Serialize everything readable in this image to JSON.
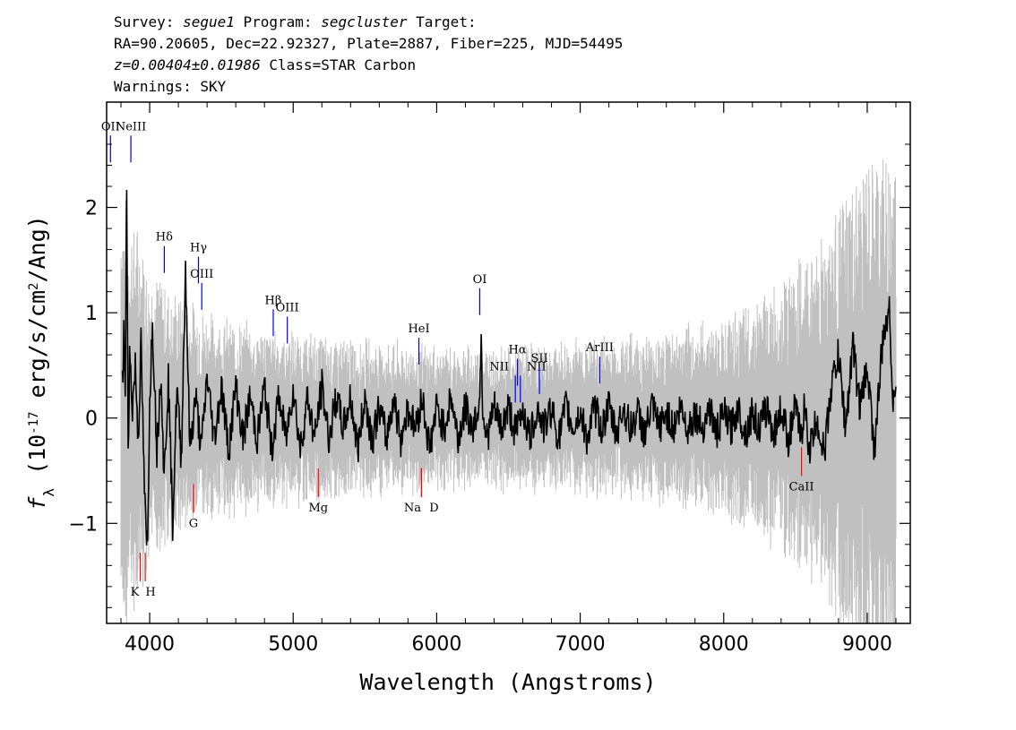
{
  "header": {
    "line1": [
      {
        "text": "Survey: ",
        "italic": false
      },
      {
        "text": "segue1",
        "italic": true
      },
      {
        "text": " Program: ",
        "italic": false
      },
      {
        "text": "segcluster",
        "italic": true
      },
      {
        "text": " Target:",
        "italic": false
      }
    ],
    "line2": "RA=90.20605, Dec=22.92327, Plate=2887, Fiber=225, MJD=54495",
    "line3": [
      {
        "text": "z=0.00404±0.01986",
        "italic": true
      },
      {
        "text": " Class=STAR Carbon",
        "italic": false
      }
    ],
    "line4": "Warnings: SKY"
  },
  "chart_data": {
    "type": "line",
    "title": "",
    "xlabel": "Wavelength (Angstroms)",
    "ylabel": "f_λ (10^-17 erg/s/cm^2/Ang)",
    "xlim": [
      3700,
      9300
    ],
    "ylim": [
      -1.95,
      3.0
    ],
    "xticks": [
      4000,
      5000,
      6000,
      7000,
      8000,
      9000
    ],
    "yticks": [
      -1,
      0,
      1,
      2
    ],
    "grid": false,
    "series": [
      {
        "role": "flux",
        "color": "#000000",
        "points": [
          [
            3810,
            0.3
          ],
          [
            3820,
            0.8
          ],
          [
            3830,
            0.2
          ],
          [
            3840,
            2.25
          ],
          [
            3850,
            -0.3
          ],
          [
            3860,
            0.6
          ],
          [
            3880,
            0.1
          ],
          [
            3900,
            0.5
          ],
          [
            3920,
            -0.2
          ],
          [
            3940,
            0.7
          ],
          [
            3960,
            -0.5
          ],
          [
            3975,
            -1.15
          ],
          [
            3985,
            -1.2
          ],
          [
            4000,
            0.2
          ],
          [
            4020,
            0.9
          ],
          [
            4050,
            -0.3
          ],
          [
            4080,
            0.5
          ],
          [
            4100,
            -0.6
          ],
          [
            4130,
            0.4
          ],
          [
            4160,
            -1.0
          ],
          [
            4190,
            0.3
          ],
          [
            4220,
            -0.4
          ],
          [
            4250,
            1.45
          ],
          [
            4280,
            -0.3
          ],
          [
            4320,
            0.2
          ],
          [
            4360,
            -0.3
          ],
          [
            4400,
            0.4
          ],
          [
            4450,
            -0.2
          ],
          [
            4500,
            0.3
          ],
          [
            4550,
            -0.3
          ],
          [
            4600,
            0.3
          ],
          [
            4650,
            -0.2
          ],
          [
            4700,
            0.2
          ],
          [
            4750,
            -0.2
          ],
          [
            4800,
            0.3
          ],
          [
            4850,
            -0.3
          ],
          [
            4900,
            0.2
          ],
          [
            4950,
            -0.2
          ],
          [
            5000,
            0.3
          ],
          [
            5050,
            -0.3
          ],
          [
            5100,
            0.2
          ],
          [
            5150,
            -0.2
          ],
          [
            5200,
            0.3
          ],
          [
            5250,
            -0.2
          ],
          [
            5300,
            0.2
          ],
          [
            5350,
            -0.1
          ],
          [
            5400,
            0.2
          ],
          [
            5450,
            -0.3
          ],
          [
            5500,
            0.2
          ],
          [
            5550,
            -0.2
          ],
          [
            5600,
            0.1
          ],
          [
            5650,
            -0.2
          ],
          [
            5700,
            0.2
          ],
          [
            5750,
            -0.2
          ],
          [
            5800,
            0.1
          ],
          [
            5850,
            -0.1
          ],
          [
            5900,
            0.2
          ],
          [
            5950,
            -0.3
          ],
          [
            6000,
            0.1
          ],
          [
            6050,
            -0.1
          ],
          [
            6100,
            0.2
          ],
          [
            6150,
            -0.2
          ],
          [
            6200,
            0.1
          ],
          [
            6250,
            -0.1
          ],
          [
            6300,
            0.15
          ],
          [
            6310,
            0.9
          ],
          [
            6320,
            0.1
          ],
          [
            6350,
            -0.2
          ],
          [
            6400,
            0.1
          ],
          [
            6450,
            -0.1
          ],
          [
            6500,
            0.1
          ],
          [
            6550,
            -0.15
          ],
          [
            6600,
            0.1
          ],
          [
            6650,
            -0.2
          ],
          [
            6700,
            0.1
          ],
          [
            6750,
            -0.1
          ],
          [
            6800,
            0.1
          ],
          [
            6850,
            -0.2
          ],
          [
            6900,
            0.1
          ],
          [
            6950,
            -0.1
          ],
          [
            7000,
            0.05
          ],
          [
            7050,
            -0.2
          ],
          [
            7100,
            0.1
          ],
          [
            7150,
            -0.1
          ],
          [
            7200,
            0.1
          ],
          [
            7250,
            -0.15
          ],
          [
            7300,
            0.1
          ],
          [
            7350,
            -0.1
          ],
          [
            7400,
            0.05
          ],
          [
            7450,
            -0.15
          ],
          [
            7500,
            0.1
          ],
          [
            7550,
            -0.1
          ],
          [
            7600,
            0.05
          ],
          [
            7650,
            -0.1
          ],
          [
            7700,
            0.1
          ],
          [
            7750,
            -0.1
          ],
          [
            7800,
            0.05
          ],
          [
            7850,
            -0.1
          ],
          [
            7900,
            0.1
          ],
          [
            7950,
            -0.15
          ],
          [
            8000,
            0.05
          ],
          [
            8050,
            -0.1
          ],
          [
            8100,
            0.1
          ],
          [
            8150,
            -0.15
          ],
          [
            8200,
            0.05
          ],
          [
            8250,
            -0.1
          ],
          [
            8300,
            0.1
          ],
          [
            8350,
            -0.15
          ],
          [
            8400,
            0.1
          ],
          [
            8450,
            -0.2
          ],
          [
            8500,
            0.1
          ],
          [
            8540,
            -0.2
          ],
          [
            8560,
            0.1
          ],
          [
            8600,
            -0.3
          ],
          [
            8650,
            0.0
          ],
          [
            8700,
            -0.35
          ],
          [
            8750,
            0.3
          ],
          [
            8800,
            0.6
          ],
          [
            8850,
            -0.1
          ],
          [
            8900,
            0.7
          ],
          [
            8950,
            0.1
          ],
          [
            9000,
            0.5
          ],
          [
            9050,
            -0.3
          ],
          [
            9100,
            0.6
          ],
          [
            9150,
            1.1
          ],
          [
            9180,
            0.2
          ],
          [
            9200,
            0.3
          ]
        ]
      },
      {
        "role": "error",
        "color": "#c0c0c0",
        "points": [
          [
            3800,
            1.6
          ],
          [
            3850,
            1.4
          ],
          [
            3900,
            1.3
          ],
          [
            3950,
            1.2
          ],
          [
            4000,
            1.0
          ],
          [
            4100,
            0.9
          ],
          [
            4200,
            0.8
          ],
          [
            4300,
            0.75
          ],
          [
            4400,
            0.7
          ],
          [
            4500,
            0.65
          ],
          [
            4700,
            0.6
          ],
          [
            5000,
            0.55
          ],
          [
            5500,
            0.5
          ],
          [
            6000,
            0.45
          ],
          [
            6500,
            0.45
          ],
          [
            7000,
            0.5
          ],
          [
            7500,
            0.55
          ],
          [
            7800,
            0.6
          ],
          [
            8000,
            0.65
          ],
          [
            8200,
            0.75
          ],
          [
            8400,
            0.9
          ],
          [
            8600,
            1.1
          ],
          [
            8800,
            1.4
          ],
          [
            9000,
            1.7
          ],
          [
            9200,
            1.8
          ]
        ]
      }
    ],
    "line_labels": [
      {
        "label": "OII",
        "wave": 3727,
        "color": "blue",
        "pos": "top",
        "y": 2.7
      },
      {
        "label": "NeIII",
        "wave": 3869,
        "color": "blue",
        "pos": "top",
        "y": 2.7
      },
      {
        "label": "Hδ",
        "wave": 4102,
        "color": "blue",
        "pos": "top",
        "y": 1.65
      },
      {
        "label": "Hγ",
        "wave": 4340,
        "color": "blue",
        "pos": "top",
        "y": 1.55
      },
      {
        "label": "OIII",
        "wave": 4363,
        "color": "blue",
        "pos": "top",
        "y": 1.3
      },
      {
        "label": "Hβ",
        "wave": 4861,
        "color": "blue",
        "pos": "top",
        "y": 1.05
      },
      {
        "label": "OIII",
        "wave": 4959,
        "color": "blue",
        "pos": "top",
        "y": 0.98
      },
      {
        "label": "HeI",
        "wave": 5876,
        "color": "blue",
        "pos": "top",
        "y": 0.78
      },
      {
        "label": "OI",
        "wave": 6300,
        "color": "blue",
        "pos": "top",
        "y": 1.25
      },
      {
        "label": "NII",
        "wave": 6548,
        "color": "blue",
        "pos": "top",
        "y": 0.42
      },
      {
        "label": "Hα",
        "wave": 6563,
        "color": "blue",
        "pos": "top",
        "y": 0.58
      },
      {
        "label": "NII",
        "wave": 6583,
        "color": "blue",
        "pos": "top",
        "y": 0.42
      },
      {
        "label": "SII",
        "wave": 6716,
        "color": "blue",
        "pos": "top",
        "y": 0.5
      },
      {
        "label": "ArIII",
        "wave": 7136,
        "color": "blue",
        "pos": "top",
        "y": 0.6
      },
      {
        "label": "K",
        "wave": 3934,
        "color": "red",
        "pos": "bottom",
        "y": -1.55
      },
      {
        "label": "H",
        "wave": 3969,
        "color": "red",
        "pos": "bottom",
        "y": -1.55
      },
      {
        "label": "G",
        "wave": 4305,
        "color": "red",
        "pos": "bottom",
        "y": -0.9
      },
      {
        "label": "Mg",
        "wave": 5175,
        "color": "red",
        "pos": "bottom",
        "y": -0.75
      },
      {
        "label": "Na",
        "wave": 5894,
        "color": "red",
        "pos": "bottom",
        "y": -0.75
      },
      {
        "label": "D",
        "wave": 5894,
        "color": "red",
        "pos": "bottom",
        "y": -0.75
      },
      {
        "label": "CaII",
        "wave": 8542,
        "color": "red",
        "pos": "bottom",
        "y": -0.55
      }
    ]
  }
}
